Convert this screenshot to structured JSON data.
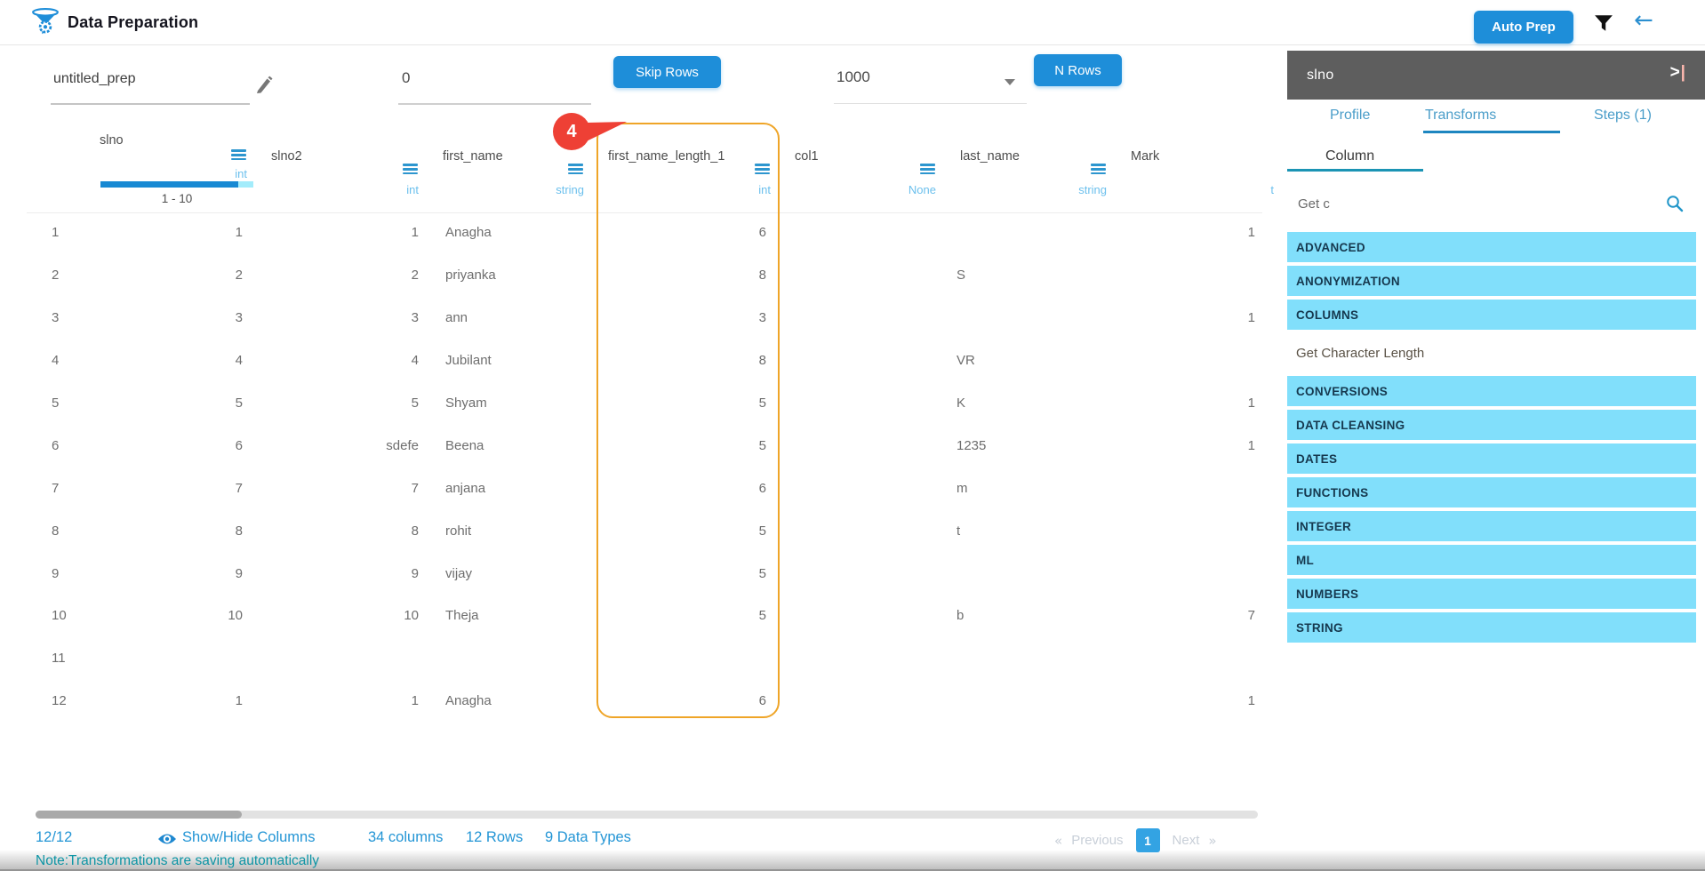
{
  "header": {
    "app_title": "Data Preparation",
    "auto_prep_label": "Auto Prep"
  },
  "toolbar": {
    "prep_name": "untitled_prep",
    "skip_value": "0",
    "skip_label": "Skip Rows",
    "nrows_value": "1000",
    "nrows_label": "N Rows"
  },
  "table": {
    "highlight_badge": "4",
    "highlighted_column": "first_name_length_1",
    "columns": [
      {
        "name": "slno",
        "type": "int",
        "filter_range": "1 - 10"
      },
      {
        "name": "slno2",
        "type": "int"
      },
      {
        "name": "first_name",
        "type": "string"
      },
      {
        "name": "first_name_length_1",
        "type": "int"
      },
      {
        "name": "col1",
        "type": "None"
      },
      {
        "name": "last_name",
        "type": "string"
      },
      {
        "name": "Mark",
        "type": "t"
      }
    ],
    "rows": [
      [
        "1",
        "1",
        "1",
        "Anagha",
        "6",
        "",
        "",
        "1"
      ],
      [
        "2",
        "2",
        "2",
        "priyanka",
        "8",
        "",
        "S",
        ""
      ],
      [
        "3",
        "3",
        "3",
        "ann",
        "3",
        "",
        "",
        "1"
      ],
      [
        "4",
        "4",
        "4",
        "Jubilant",
        "8",
        "",
        "VR",
        ""
      ],
      [
        "5",
        "5",
        "5",
        "Shyam",
        "5",
        "",
        "K",
        "1"
      ],
      [
        "6",
        "6",
        "sdefe",
        "Beena",
        "5",
        "",
        "1235",
        "1"
      ],
      [
        "7",
        "7",
        "7",
        "anjana",
        "6",
        "",
        "m",
        ""
      ],
      [
        "8",
        "8",
        "8",
        "rohit",
        "5",
        "",
        "t",
        ""
      ],
      [
        "9",
        "9",
        "9",
        "vijay",
        "5",
        "",
        "",
        ""
      ],
      [
        "10",
        "10",
        "10",
        "Theja",
        "5",
        "",
        "b",
        "7"
      ],
      [
        "11",
        "",
        "",
        "",
        "",
        "",
        "",
        ""
      ],
      [
        "12",
        "1",
        "1",
        "Anagha",
        "6",
        "",
        "",
        "1"
      ]
    ]
  },
  "sidebar": {
    "title": "slno",
    "tabs": [
      "Profile",
      "Transforms",
      "Steps (1)"
    ],
    "active_tab": "Transforms",
    "sub_tab": "Column",
    "search_value": "Get c",
    "items": [
      {
        "label": "ADVANCED",
        "kind": "category"
      },
      {
        "label": "ANONYMIZATION",
        "kind": "category"
      },
      {
        "label": "COLUMNS",
        "kind": "category"
      },
      {
        "label": "Get Character Length",
        "kind": "result"
      },
      {
        "label": "CONVERSIONS",
        "kind": "category"
      },
      {
        "label": "DATA CLEANSING",
        "kind": "category"
      },
      {
        "label": "DATES",
        "kind": "category"
      },
      {
        "label": "FUNCTIONS",
        "kind": "category"
      },
      {
        "label": "INTEGER",
        "kind": "category"
      },
      {
        "label": "ML",
        "kind": "category"
      },
      {
        "label": "NUMBERS",
        "kind": "category"
      },
      {
        "label": "STRING",
        "kind": "category"
      }
    ]
  },
  "footer": {
    "rows_shown": "12/12",
    "show_hide_label": "Show/Hide Columns",
    "columns_count": "34 columns",
    "rows_count": "12 Rows",
    "types_count": "9 Data Types",
    "prev_symbol": "«",
    "prev_label": "Previous",
    "page": "1",
    "next_label": "Next",
    "next_symbol": "»",
    "note": "Note:Transformations are saving automatically"
  }
}
